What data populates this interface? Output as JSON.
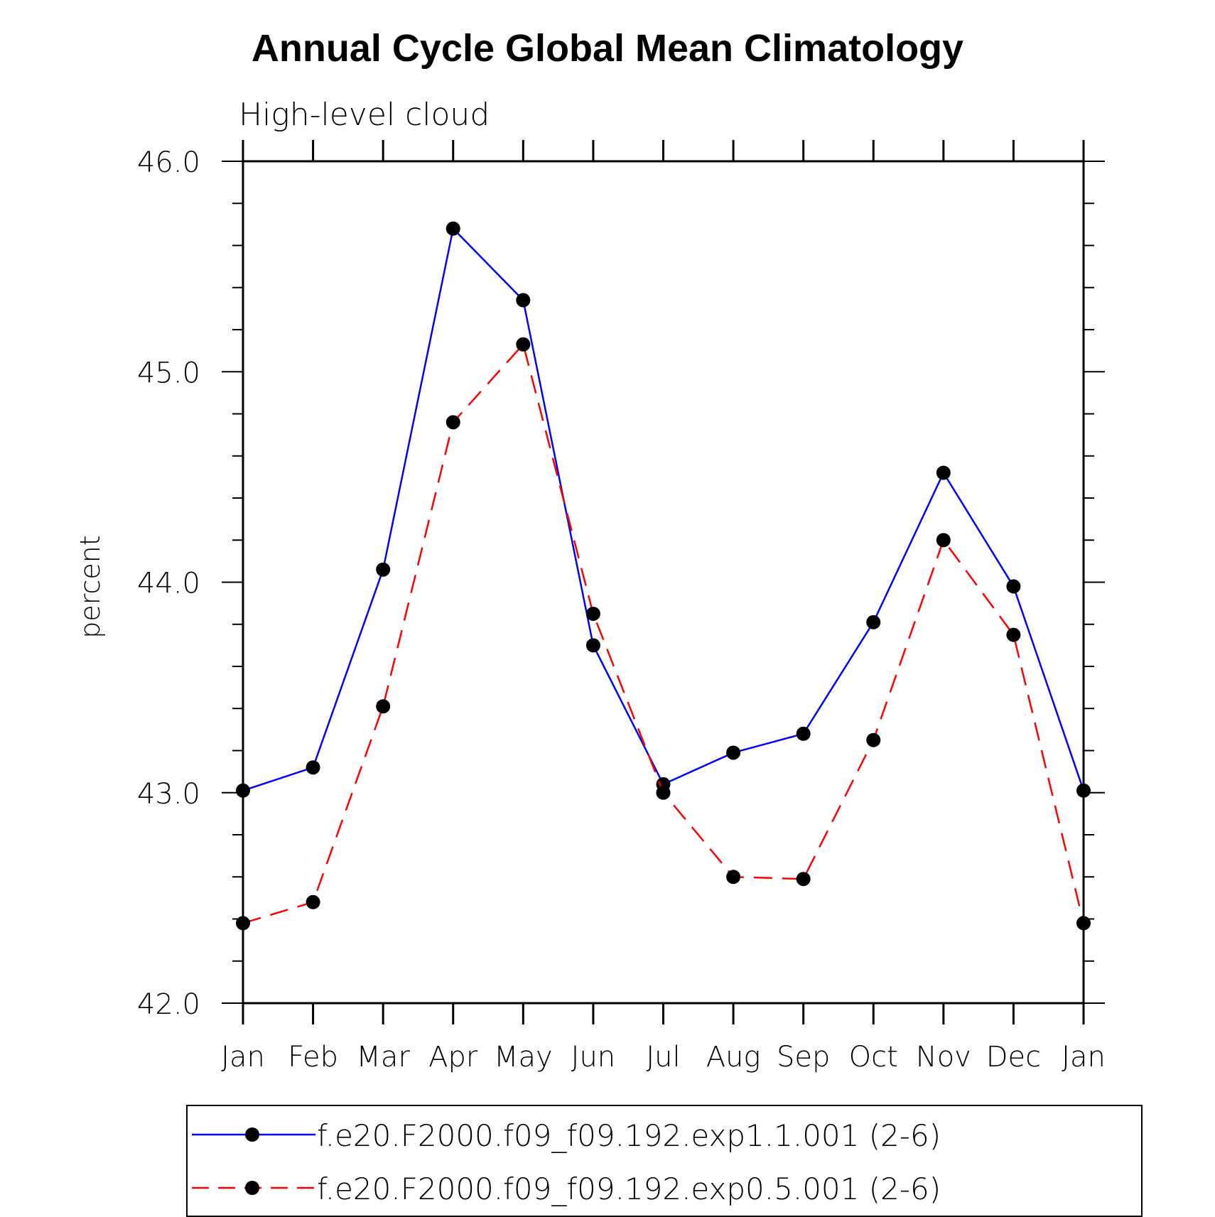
{
  "chart_data": {
    "type": "line",
    "title": "Annual Cycle Global Mean Climatology",
    "subtitle": "High-level cloud",
    "xlabel": "",
    "ylabel": "percent",
    "ylim": [
      42.0,
      46.0
    ],
    "yticks": [
      "42.0",
      "43.0",
      "44.0",
      "45.0",
      "46.0"
    ],
    "categories": [
      "Jan",
      "Feb",
      "Mar",
      "Apr",
      "May",
      "Jun",
      "Jul",
      "Aug",
      "Sep",
      "Oct",
      "Nov",
      "Dec",
      "Jan"
    ],
    "series": [
      {
        "name": "f.e20.F2000.f09_f09.192.exp1.1.001 (2-6)",
        "color": "#0000ff",
        "dash": "solid",
        "values": [
          43.01,
          43.12,
          44.06,
          45.68,
          45.34,
          43.7,
          43.04,
          43.19,
          43.28,
          43.81,
          44.52,
          43.98,
          43.01
        ]
      },
      {
        "name": "f.e20.F2000.f09_f09.192.exp0.5.001 (2-6)",
        "color": "#ff0000",
        "dash": "dashed",
        "values": [
          42.38,
          42.48,
          43.41,
          44.76,
          45.13,
          43.85,
          43.0,
          42.6,
          42.59,
          43.25,
          44.2,
          43.75,
          42.38
        ]
      }
    ]
  }
}
